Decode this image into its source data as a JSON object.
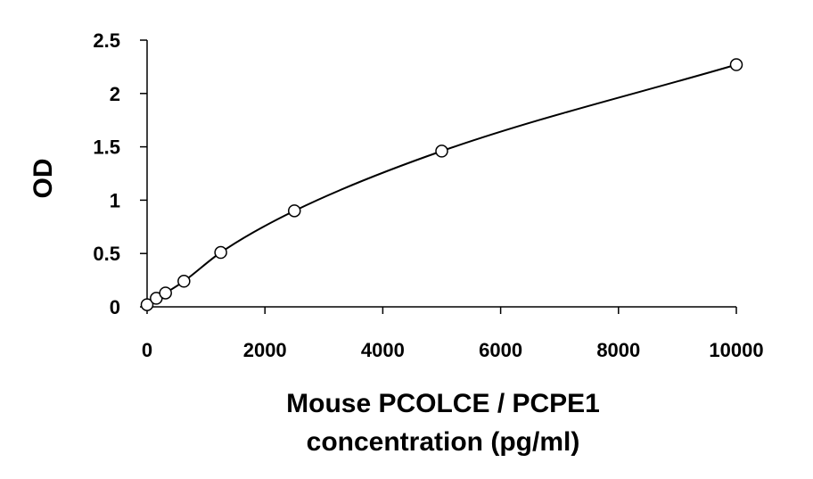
{
  "chart_data": {
    "type": "scatter",
    "title": "",
    "xlabel_lines": [
      "Mouse PCOLCE / PCPE1",
      "concentration (pg/ml)"
    ],
    "ylabel": "OD",
    "xlim": [
      0,
      10000
    ],
    "ylim": [
      0,
      2.5
    ],
    "x_ticks": [
      0,
      2000,
      4000,
      6000,
      8000,
      10000
    ],
    "y_ticks": [
      0,
      0.5,
      1,
      1.5,
      2,
      2.5
    ],
    "x_tick_labels": [
      "0",
      "2000",
      "4000",
      "6000",
      "8000",
      "10000"
    ],
    "y_tick_labels": [
      "0",
      "0.5",
      "1",
      "1.5",
      "2",
      "2.5"
    ],
    "grid": false,
    "legend": "none",
    "series": [
      {
        "x": [
          0,
          156,
          313,
          625,
          1250,
          2500,
          5000,
          10000
        ],
        "y": [
          0.02,
          0.08,
          0.13,
          0.24,
          0.51,
          0.9,
          1.46,
          2.27
        ],
        "marker": "open-circle",
        "fit": "smooth-curve",
        "color": "#000000"
      }
    ]
  }
}
